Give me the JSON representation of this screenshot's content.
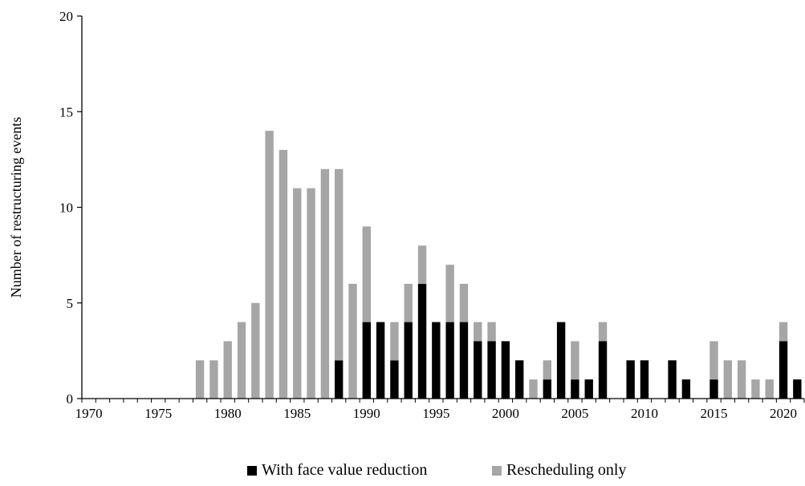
{
  "chart_data": {
    "type": "bar",
    "stacked": true,
    "ylabel": "Number of restructuring events",
    "xlabel": "",
    "ylim": [
      0,
      20
    ],
    "y_ticks": [
      0,
      5,
      10,
      15,
      20
    ],
    "x_ticks": [
      1970,
      1975,
      1980,
      1985,
      1990,
      1995,
      2000,
      2005,
      2010,
      2015,
      2020
    ],
    "grid": false,
    "legend_position": "bottom-center",
    "x": [
      1970,
      1971,
      1972,
      1973,
      1974,
      1975,
      1976,
      1977,
      1978,
      1979,
      1980,
      1981,
      1982,
      1983,
      1984,
      1985,
      1986,
      1987,
      1988,
      1989,
      1990,
      1991,
      1992,
      1993,
      1994,
      1995,
      1996,
      1997,
      1998,
      1999,
      2000,
      2001,
      2002,
      2003,
      2004,
      2005,
      2006,
      2007,
      2008,
      2009,
      2010,
      2011,
      2012,
      2013,
      2014,
      2015,
      2016,
      2017,
      2018,
      2019,
      2020,
      2021
    ],
    "series": [
      {
        "name": "With face value reduction",
        "color": "#000000",
        "values": [
          0,
          0,
          0,
          0,
          0,
          0,
          0,
          0,
          0,
          0,
          0,
          0,
          0,
          0,
          0,
          0,
          0,
          0,
          2,
          0,
          4,
          4,
          2,
          4,
          6,
          4,
          4,
          4,
          3,
          3,
          3,
          2,
          0,
          1,
          4,
          1,
          1,
          3,
          0,
          2,
          2,
          0,
          2,
          1,
          0,
          1,
          0,
          0,
          0,
          0,
          3,
          1
        ]
      },
      {
        "name": "Rescheduling only",
        "color": "#a6a6a6",
        "values": [
          0,
          0,
          0,
          0,
          0,
          0,
          0,
          0,
          2,
          2,
          3,
          4,
          5,
          14,
          13,
          11,
          11,
          12,
          10,
          6,
          5,
          0,
          2,
          2,
          2,
          0,
          3,
          2,
          1,
          1,
          0,
          0,
          1,
          1,
          0,
          2,
          0,
          1,
          0,
          0,
          0,
          0,
          0,
          0,
          0,
          2,
          2,
          2,
          1,
          1,
          1,
          0
        ]
      }
    ]
  }
}
